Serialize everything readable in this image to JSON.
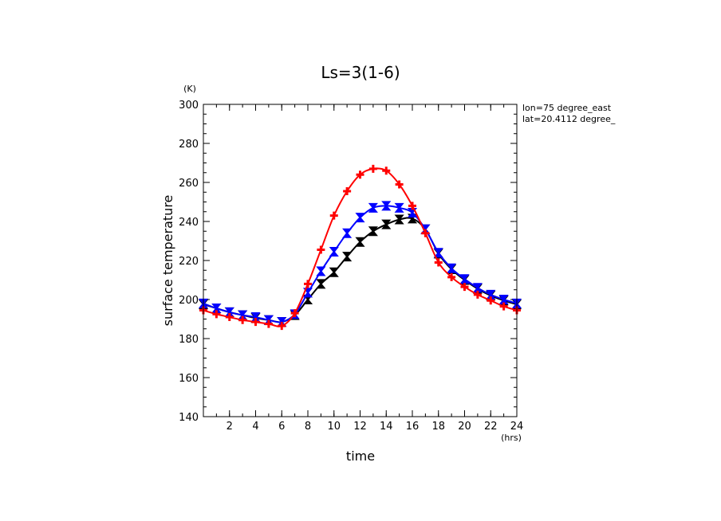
{
  "chart_data": {
    "type": "line",
    "title": "Ls=3(1-6)",
    "xlabel": "time",
    "ylabel": "surface temperature",
    "x_unit": "(hrs)",
    "y_unit": "(K)",
    "annotations": [
      "lon=75 degree_east",
      "lat=20.4112 degree_"
    ],
    "xlim": [
      0,
      24
    ],
    "ylim": [
      140,
      300
    ],
    "x_ticks": [
      2,
      4,
      6,
      8,
      10,
      12,
      14,
      16,
      18,
      20,
      22,
      24
    ],
    "y_ticks": [
      140,
      160,
      180,
      200,
      220,
      240,
      260,
      280,
      300
    ],
    "grid": false,
    "x": [
      0,
      1,
      2,
      3,
      4,
      5,
      6,
      7,
      8,
      9,
      10,
      11,
      12,
      13,
      14,
      15,
      16,
      17,
      18,
      19,
      20,
      21,
      22,
      23,
      24
    ],
    "series": [
      {
        "color": "#000000",
        "marker": "hourglass",
        "values": [
          197.5,
          195.5,
          193.5,
          192,
          190.5,
          189.5,
          188.5,
          192,
          200,
          208,
          214,
          222,
          229.5,
          235,
          238.5,
          241,
          241.5,
          236,
          223.5,
          215.5,
          210,
          205.5,
          202,
          199.5,
          197.5
        ]
      },
      {
        "color": "#0000ff",
        "marker": "hourglass",
        "values": [
          198,
          195.5,
          193.5,
          192,
          191,
          189.5,
          188.5,
          192.5,
          203.5,
          214.5,
          224.5,
          234,
          242,
          247,
          248,
          247,
          244.5,
          236,
          224,
          216,
          210.5,
          206,
          202.5,
          200,
          198
        ]
      },
      {
        "color": "#ff0000",
        "marker": "plus",
        "values": [
          194.5,
          192.5,
          191,
          189.5,
          188.5,
          187.5,
          186.5,
          193,
          208,
          225.5,
          243,
          255.5,
          264,
          267,
          266,
          259,
          248,
          234,
          219,
          211.5,
          206.5,
          202.5,
          199.5,
          196.5,
          194.5
        ]
      }
    ]
  }
}
